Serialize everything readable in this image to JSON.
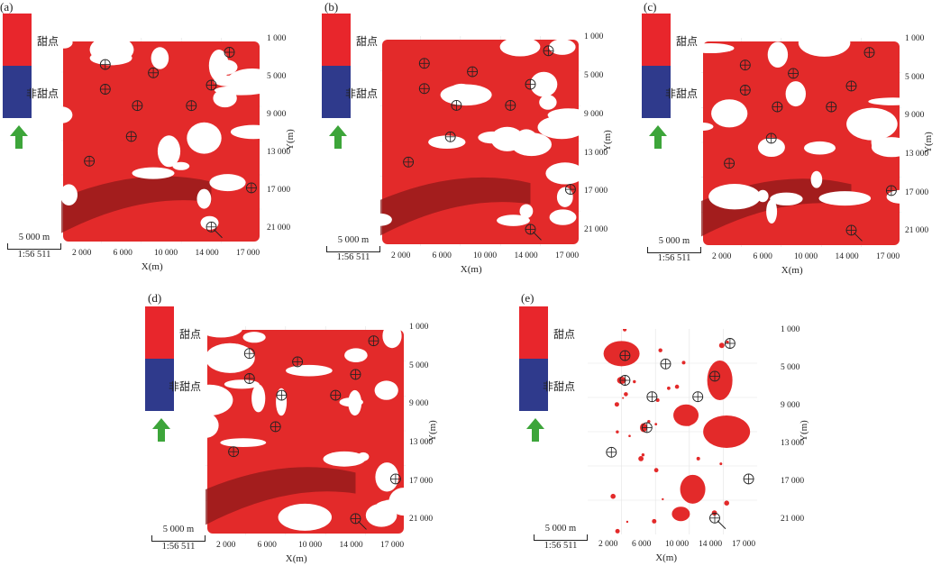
{
  "legend": {
    "sweet": "甜点",
    "nonsweet": "非甜点",
    "colors": {
      "sweet": "#e8262c",
      "nonsweet": "#2f3a8c",
      "arrow": "#3da53a"
    }
  },
  "scale": {
    "length": "5 000 m",
    "ratio": "1:56 511"
  },
  "axes": {
    "x_title": "X(m)",
    "y_title": "Y(m)",
    "y_ticks": [
      "1 000",
      "5 000",
      "9 000",
      "13 000",
      "17 000",
      "21 000"
    ],
    "x_ticks": [
      "2 000",
      "6 000",
      "10 000",
      "14 000",
      "17 000"
    ]
  },
  "panels": [
    {
      "label": "(a)"
    },
    {
      "label": "(b)"
    },
    {
      "label": "(c)"
    },
    {
      "label": "(d)"
    },
    {
      "label": "(e)"
    }
  ],
  "marker_icon": "well-marker-icon"
}
